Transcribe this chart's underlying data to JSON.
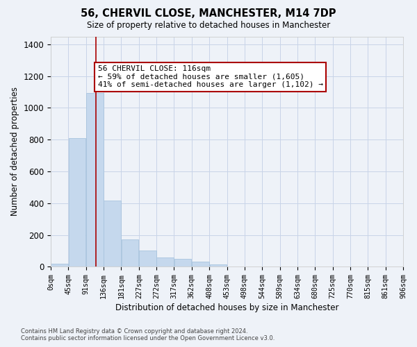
{
  "title": "56, CHERVIL CLOSE, MANCHESTER, M14 7DP",
  "subtitle": "Size of property relative to detached houses in Manchester",
  "xlabel": "Distribution of detached houses by size in Manchester",
  "ylabel": "Number of detached properties",
  "bar_color": "#c5d8ed",
  "bar_edge_color": "#a8c4de",
  "grid_color": "#c8d4e8",
  "vline_color": "#aa0000",
  "annotation_text": "56 CHERVIL CLOSE: 116sqm\n← 59% of detached houses are smaller (1,605)\n41% of semi-detached houses are larger (1,102) →",
  "annotation_box_color": "#ffffff",
  "annotation_box_edge": "#aa0000",
  "footnote": "Contains HM Land Registry data © Crown copyright and database right 2024.\nContains public sector information licensed under the Open Government Licence v3.0.",
  "bin_labels": [
    "0sqm",
    "45sqm",
    "91sqm",
    "136sqm",
    "181sqm",
    "227sqm",
    "272sqm",
    "317sqm",
    "362sqm",
    "408sqm",
    "453sqm",
    "498sqm",
    "544sqm",
    "589sqm",
    "634sqm",
    "680sqm",
    "725sqm",
    "770sqm",
    "815sqm",
    "861sqm",
    "906sqm"
  ],
  "values": [
    20,
    810,
    1095,
    415,
    170,
    100,
    60,
    50,
    30,
    15,
    0,
    0,
    0,
    0,
    0,
    0,
    0,
    0,
    0,
    0
  ],
  "n_bins": 20,
  "vline_bin": 2.56,
  "ylim": [
    0,
    1450
  ],
  "yticks": [
    0,
    200,
    400,
    600,
    800,
    1000,
    1200,
    1400
  ],
  "background_color": "#eef2f8"
}
